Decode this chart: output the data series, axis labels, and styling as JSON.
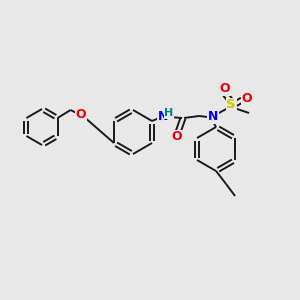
{
  "background_color": "#e8e8e8",
  "bond_color": "#1a1a1a",
  "atom_colors": {
    "N": "#0000ee",
    "O": "#ee0000",
    "S": "#cccc00",
    "H": "#008080",
    "C": "#1a1a1a"
  },
  "figsize": [
    3.0,
    3.0
  ],
  "dpi": 100,
  "lw": 1.4
}
